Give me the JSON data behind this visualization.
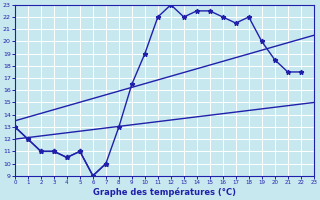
{
  "title": "Graphe des températures (°C)",
  "bg_color": "#c8e8f0",
  "line_color": "#2020aa",
  "grid_color": "#ffffff",
  "xlim": [
    0,
    23
  ],
  "ylim": [
    9,
    23
  ],
  "xticks": [
    0,
    1,
    2,
    3,
    4,
    5,
    6,
    7,
    8,
    9,
    10,
    11,
    12,
    13,
    14,
    15,
    16,
    17,
    18,
    19,
    20,
    21,
    22,
    23
  ],
  "yticks": [
    9,
    10,
    11,
    12,
    13,
    14,
    15,
    16,
    17,
    18,
    19,
    20,
    21,
    22,
    23
  ],
  "curve1_x": [
    0,
    1,
    2,
    3,
    4,
    5,
    6,
    7,
    8,
    9,
    10,
    11,
    12,
    13,
    14,
    15,
    16,
    17,
    18,
    19,
    20,
    21,
    22
  ],
  "curve1_y": [
    13,
    12,
    11,
    11,
    10.5,
    11,
    9,
    10,
    13,
    16.5,
    19,
    22,
    23,
    22,
    22.5,
    22.5,
    22,
    21.5,
    22,
    20,
    18.5,
    17.5,
    17.5
  ],
  "curve2_x": [
    0,
    1,
    2,
    3,
    4,
    5,
    6,
    7
  ],
  "curve2_y": [
    13,
    12,
    11,
    11,
    10.5,
    11,
    9,
    10
  ],
  "trend1_x": [
    0,
    23
  ],
  "trend1_y": [
    12.0,
    15.0
  ],
  "trend2_x": [
    0,
    23
  ],
  "trend2_y": [
    13.5,
    20.5
  ]
}
